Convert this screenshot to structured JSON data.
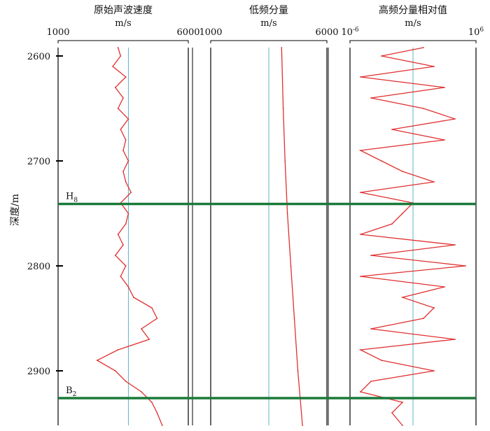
{
  "chart_data": {
    "type": "line",
    "y_axis": {
      "label": "深度/m",
      "range": [
        2592,
        2952
      ],
      "ticks": [
        2600,
        2700,
        2800,
        2900
      ],
      "tick_labels": [
        "2600",
        "2700",
        "2800",
        "2900"
      ],
      "inverted": true
    },
    "tracks": [
      {
        "title": "原始声波速度",
        "unit": "m/s",
        "scale": "linear",
        "range": [
          1000,
          6000
        ],
        "tick_labels": {
          "min": "1000",
          "max": "6000"
        },
        "reference_line": 3700,
        "series": {
          "color": "#e03030",
          "depth": [
            2592,
            2600,
            2610,
            2620,
            2630,
            2640,
            2650,
            2660,
            2670,
            2680,
            2690,
            2700,
            2710,
            2720,
            2730,
            2740,
            2750,
            2760,
            2770,
            2780,
            2790,
            2800,
            2810,
            2820,
            2830,
            2840,
            2850,
            2860,
            2870,
            2880,
            2890,
            2900,
            2910,
            2920,
            2930,
            2940,
            2952
          ],
          "value": [
            3300,
            3400,
            3100,
            3600,
            3200,
            3500,
            3300,
            3700,
            3400,
            3600,
            3500,
            3700,
            3500,
            3600,
            3800,
            3400,
            3700,
            3600,
            3300,
            3500,
            3200,
            3600,
            3400,
            3700,
            3900,
            4600,
            4800,
            4200,
            4500,
            3300,
            2500,
            3200,
            3600,
            4200,
            4600,
            4800,
            5000
          ]
        }
      },
      {
        "title": "低频分量",
        "unit": "m/s",
        "scale": "linear",
        "range": [
          1000,
          6000
        ],
        "tick_labels": {
          "min": "1000",
          "max": "6000"
        },
        "reference_line": 3500,
        "series": {
          "color": "#e03030",
          "depth": [
            2592,
            2650,
            2700,
            2750,
            2800,
            2850,
            2900,
            2952
          ],
          "value": [
            4050,
            4120,
            4200,
            4300,
            4450,
            4600,
            4750,
            4950
          ]
        }
      },
      {
        "title": "高频分量相对值",
        "unit": "m/s",
        "scale": "log",
        "range": [
          -6,
          6
        ],
        "tick_labels": {
          "min": "10",
          "min_sup": "-6",
          "max": "10",
          "max_sup": "6"
        },
        "reference_line": 0,
        "series": {
          "color": "#e03030",
          "depth": [
            2592,
            2600,
            2610,
            2620,
            2630,
            2640,
            2650,
            2660,
            2670,
            2680,
            2690,
            2700,
            2710,
            2720,
            2730,
            2740,
            2750,
            2760,
            2770,
            2780,
            2790,
            2800,
            2810,
            2820,
            2830,
            2840,
            2850,
            2860,
            2870,
            2880,
            2890,
            2900,
            2910,
            2920,
            2930,
            2940,
            2952
          ],
          "value": [
            1,
            -3,
            2,
            -5,
            3,
            -4,
            1,
            4,
            -2,
            3,
            -5,
            -3,
            -1,
            2,
            -5,
            0,
            -1,
            -2,
            -5,
            4,
            -4,
            5,
            -5,
            3,
            -1,
            2,
            1,
            -4,
            4,
            -5,
            -3,
            2,
            -4,
            -5,
            -1,
            -2,
            -1
          ]
        }
      }
    ],
    "horizontal_markers": [
      {
        "depth": 2741,
        "label": "H",
        "sub": "8",
        "color": "#1a7a3a"
      },
      {
        "depth": 2926,
        "label": "B",
        "sub": "2",
        "color": "#1a7a3a"
      }
    ]
  }
}
